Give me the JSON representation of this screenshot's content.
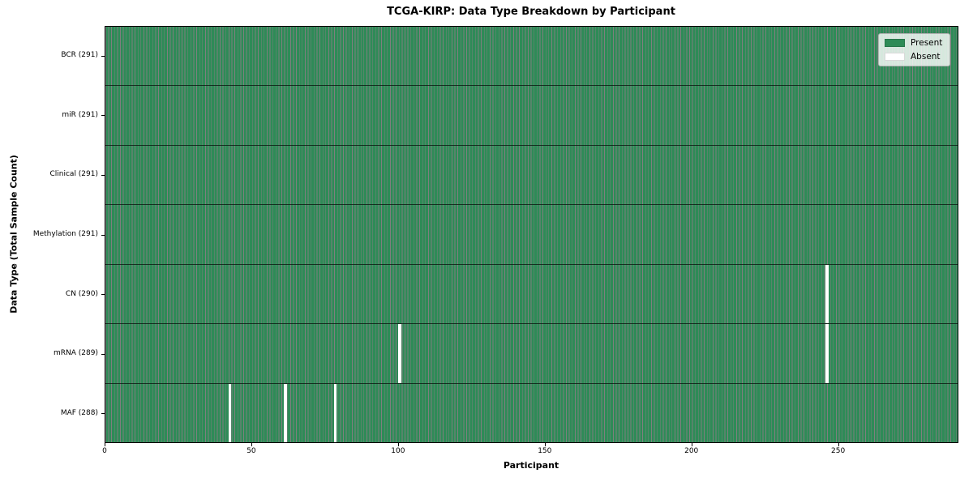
{
  "chart_data": {
    "type": "heatmap",
    "title": "TCGA-KIRP: Data Type Breakdown by Participant",
    "xlabel": "Participant",
    "ylabel": "Data Type (Total Sample Count)",
    "n_participants": 291,
    "x_range": [
      0,
      291
    ],
    "xticks": [
      0,
      50,
      100,
      150,
      200,
      250
    ],
    "rows": [
      {
        "label": "BCR (291)",
        "data_type": "BCR",
        "total_samples": 291,
        "absent_participants": []
      },
      {
        "label": "miR (291)",
        "data_type": "miR",
        "total_samples": 291,
        "absent_participants": []
      },
      {
        "label": "Clinical (291)",
        "data_type": "Clinical",
        "total_samples": 291,
        "absent_participants": []
      },
      {
        "label": "Methylation (291)",
        "data_type": "Methylation",
        "total_samples": 291,
        "absent_participants": []
      },
      {
        "label": "CN (290)",
        "data_type": "CN",
        "total_samples": 290,
        "absent_participants": [
          246
        ]
      },
      {
        "label": "mRNA (289)",
        "data_type": "mRNA",
        "total_samples": 289,
        "absent_participants": [
          100,
          246
        ]
      },
      {
        "label": "MAF (288)",
        "data_type": "MAF",
        "total_samples": 288,
        "absent_participants": [
          42,
          61,
          78
        ]
      }
    ],
    "legend": [
      {
        "label": "Present",
        "color": "#2e8b57"
      },
      {
        "label": "Absent",
        "color": "#ffffff"
      }
    ],
    "legend_position": "upper right",
    "grid": false,
    "colors": {
      "present": "#2e8b57",
      "absent": "#ffffff",
      "bar_edge": "rgba(0,0,0,0.5)",
      "row_divider": "rgba(0,0,0,0.65)",
      "spine": "#000000"
    }
  }
}
